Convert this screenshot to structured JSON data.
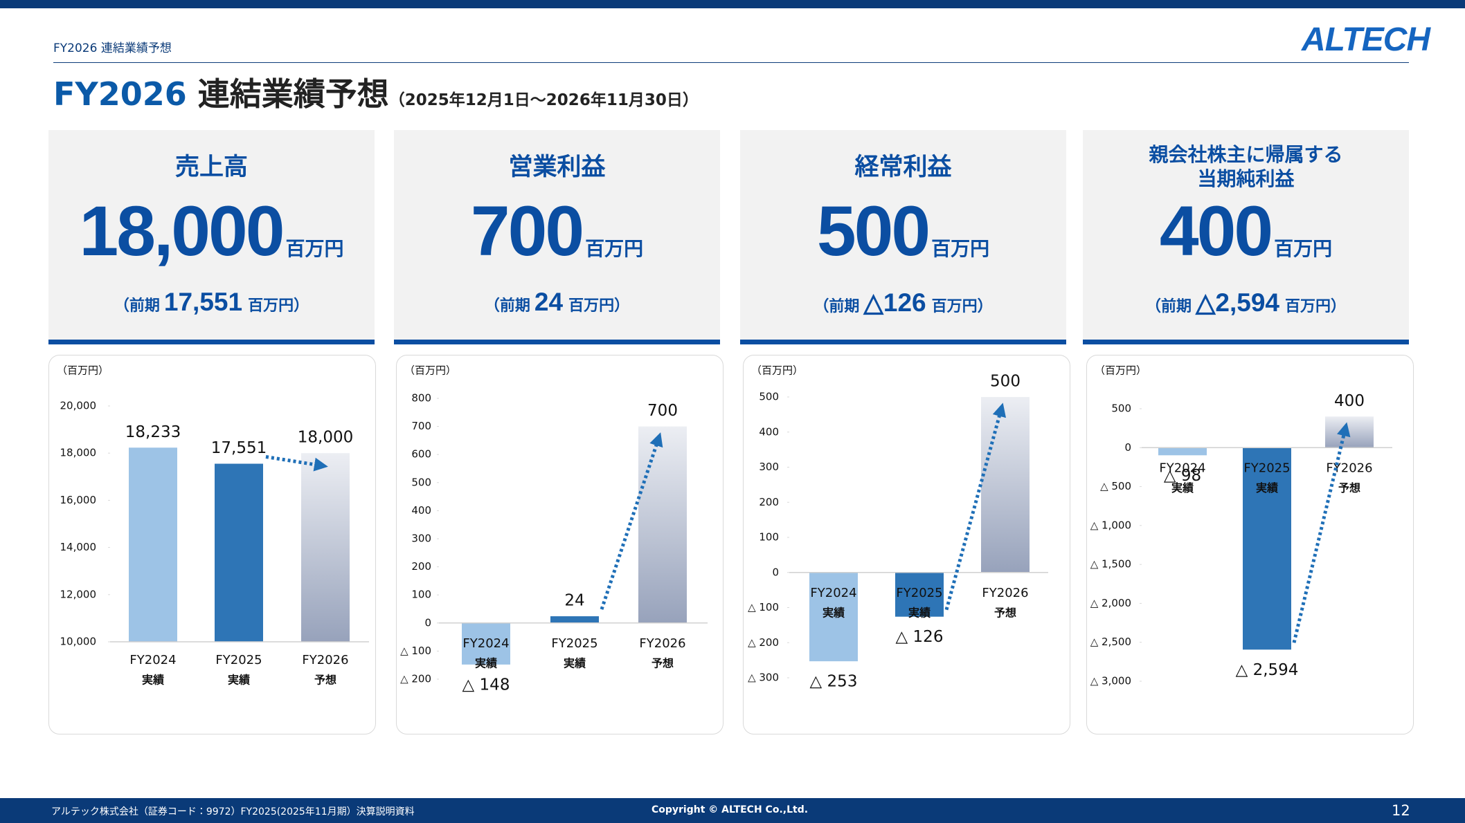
{
  "header": {
    "breadcrumb": "FY2026 連結業績予想",
    "title_prefix": "FY2026",
    "title": "連結業績予想",
    "period": "（2025年12月1日～2026年11月30日）",
    "logo": "ALTECH"
  },
  "kpis": [
    {
      "title_lines": [
        "売上高"
      ],
      "value": "18,000",
      "unit": "百万円",
      "prev_open": "（前期",
      "prev": "17,551",
      "prev_close": "百万円）"
    },
    {
      "title_lines": [
        "営業利益"
      ],
      "value": "700",
      "unit": "百万円",
      "prev_open": "（前期",
      "prev": "24",
      "prev_close": "百万円）"
    },
    {
      "title_lines": [
        "経常利益"
      ],
      "value": "500",
      "unit": "百万円",
      "prev_open": "（前期",
      "prev": "△126",
      "prev_close": "百万円）"
    },
    {
      "title_lines": [
        "親会社株主に帰属する",
        "当期純利益"
      ],
      "value": "400",
      "unit": "百万円",
      "prev_open": "（前期",
      "prev": "△2,594",
      "prev_close": "百万円）"
    }
  ],
  "chart_data": [
    {
      "type": "bar",
      "unit_label": "（百万円）",
      "categories": [
        "FY2024",
        "FY2025",
        "FY2026"
      ],
      "sublabels": [
        "実績",
        "実績",
        "予想"
      ],
      "values": [
        18233,
        17551,
        18000
      ],
      "value_labels": [
        "18,233",
        "17,551",
        "18,000"
      ],
      "colors": [
        "#9dc3e6",
        "#2e75b6",
        "#97a2bb"
      ],
      "ylim": [
        10000,
        20000
      ],
      "yticks": [
        {
          "value": 10000,
          "label": "10,000"
        },
        {
          "value": 12000,
          "label": "12,000"
        },
        {
          "value": 14000,
          "label": "14,000"
        },
        {
          "value": 16000,
          "label": "16,000"
        },
        {
          "value": 18000,
          "label": "18,000"
        },
        {
          "value": 20000,
          "label": "20,000"
        }
      ]
    },
    {
      "type": "bar",
      "unit_label": "（百万円）",
      "categories": [
        "FY2024",
        "FY2025",
        "FY2026"
      ],
      "sublabels": [
        "実績",
        "実績",
        "予想"
      ],
      "values": [
        -148,
        24,
        700
      ],
      "value_labels": [
        "△ 148",
        "24",
        "700"
      ],
      "colors": [
        "#9dc3e6",
        "#2e75b6",
        "#97a2bb"
      ],
      "ylim": [
        -200,
        800
      ],
      "yticks": [
        {
          "value": -200,
          "label": "△ 200"
        },
        {
          "value": -100,
          "label": "△ 100"
        },
        0,
        100,
        200,
        300,
        400,
        500,
        600,
        700,
        800
      ]
    },
    {
      "type": "bar",
      "unit_label": "（百万円）",
      "categories": [
        "FY2024",
        "FY2025",
        "FY2026"
      ],
      "sublabels": [
        "実績",
        "実績",
        "予想"
      ],
      "values": [
        -253,
        -126,
        500
      ],
      "value_labels": [
        "△ 253",
        "△ 126",
        "500"
      ],
      "colors": [
        "#9dc3e6",
        "#2e75b6",
        "#97a2bb"
      ],
      "ylim": [
        -300,
        500
      ],
      "yticks": [
        {
          "value": -300,
          "label": "△ 300"
        },
        {
          "value": -200,
          "label": "△ 200"
        },
        {
          "value": -100,
          "label": "△ 100"
        },
        0,
        100,
        200,
        300,
        400,
        500
      ]
    },
    {
      "type": "bar",
      "unit_label": "（百万円）",
      "categories": [
        "FY2024",
        "FY2025",
        "FY2026"
      ],
      "sublabels": [
        "実績",
        "実績",
        "予想"
      ],
      "values": [
        -98,
        -2594,
        400
      ],
      "value_labels": [
        "△ 98",
        "△ 2,594",
        "400"
      ],
      "colors": [
        "#9dc3e6",
        "#2e75b6",
        "#97a2bb"
      ],
      "ylim": [
        -3000,
        500
      ],
      "yticks": [
        {
          "value": -3000,
          "label": "△ 3,000"
        },
        {
          "value": -2500,
          "label": "△ 2,500"
        },
        {
          "value": -2000,
          "label": "△ 2,000"
        },
        {
          "value": -1500,
          "label": "△ 1,500"
        },
        {
          "value": -1000,
          "label": "△ 1,000"
        },
        {
          "value": -500,
          "label": "△ 500"
        },
        0,
        500
      ]
    }
  ],
  "footer": {
    "left": "アルテック株式会社（証券コード：9972）FY2025(2025年11月期）決算説明資料",
    "copyright": "Copyright © ALTECH Co.,Ltd.",
    "page": "12"
  }
}
